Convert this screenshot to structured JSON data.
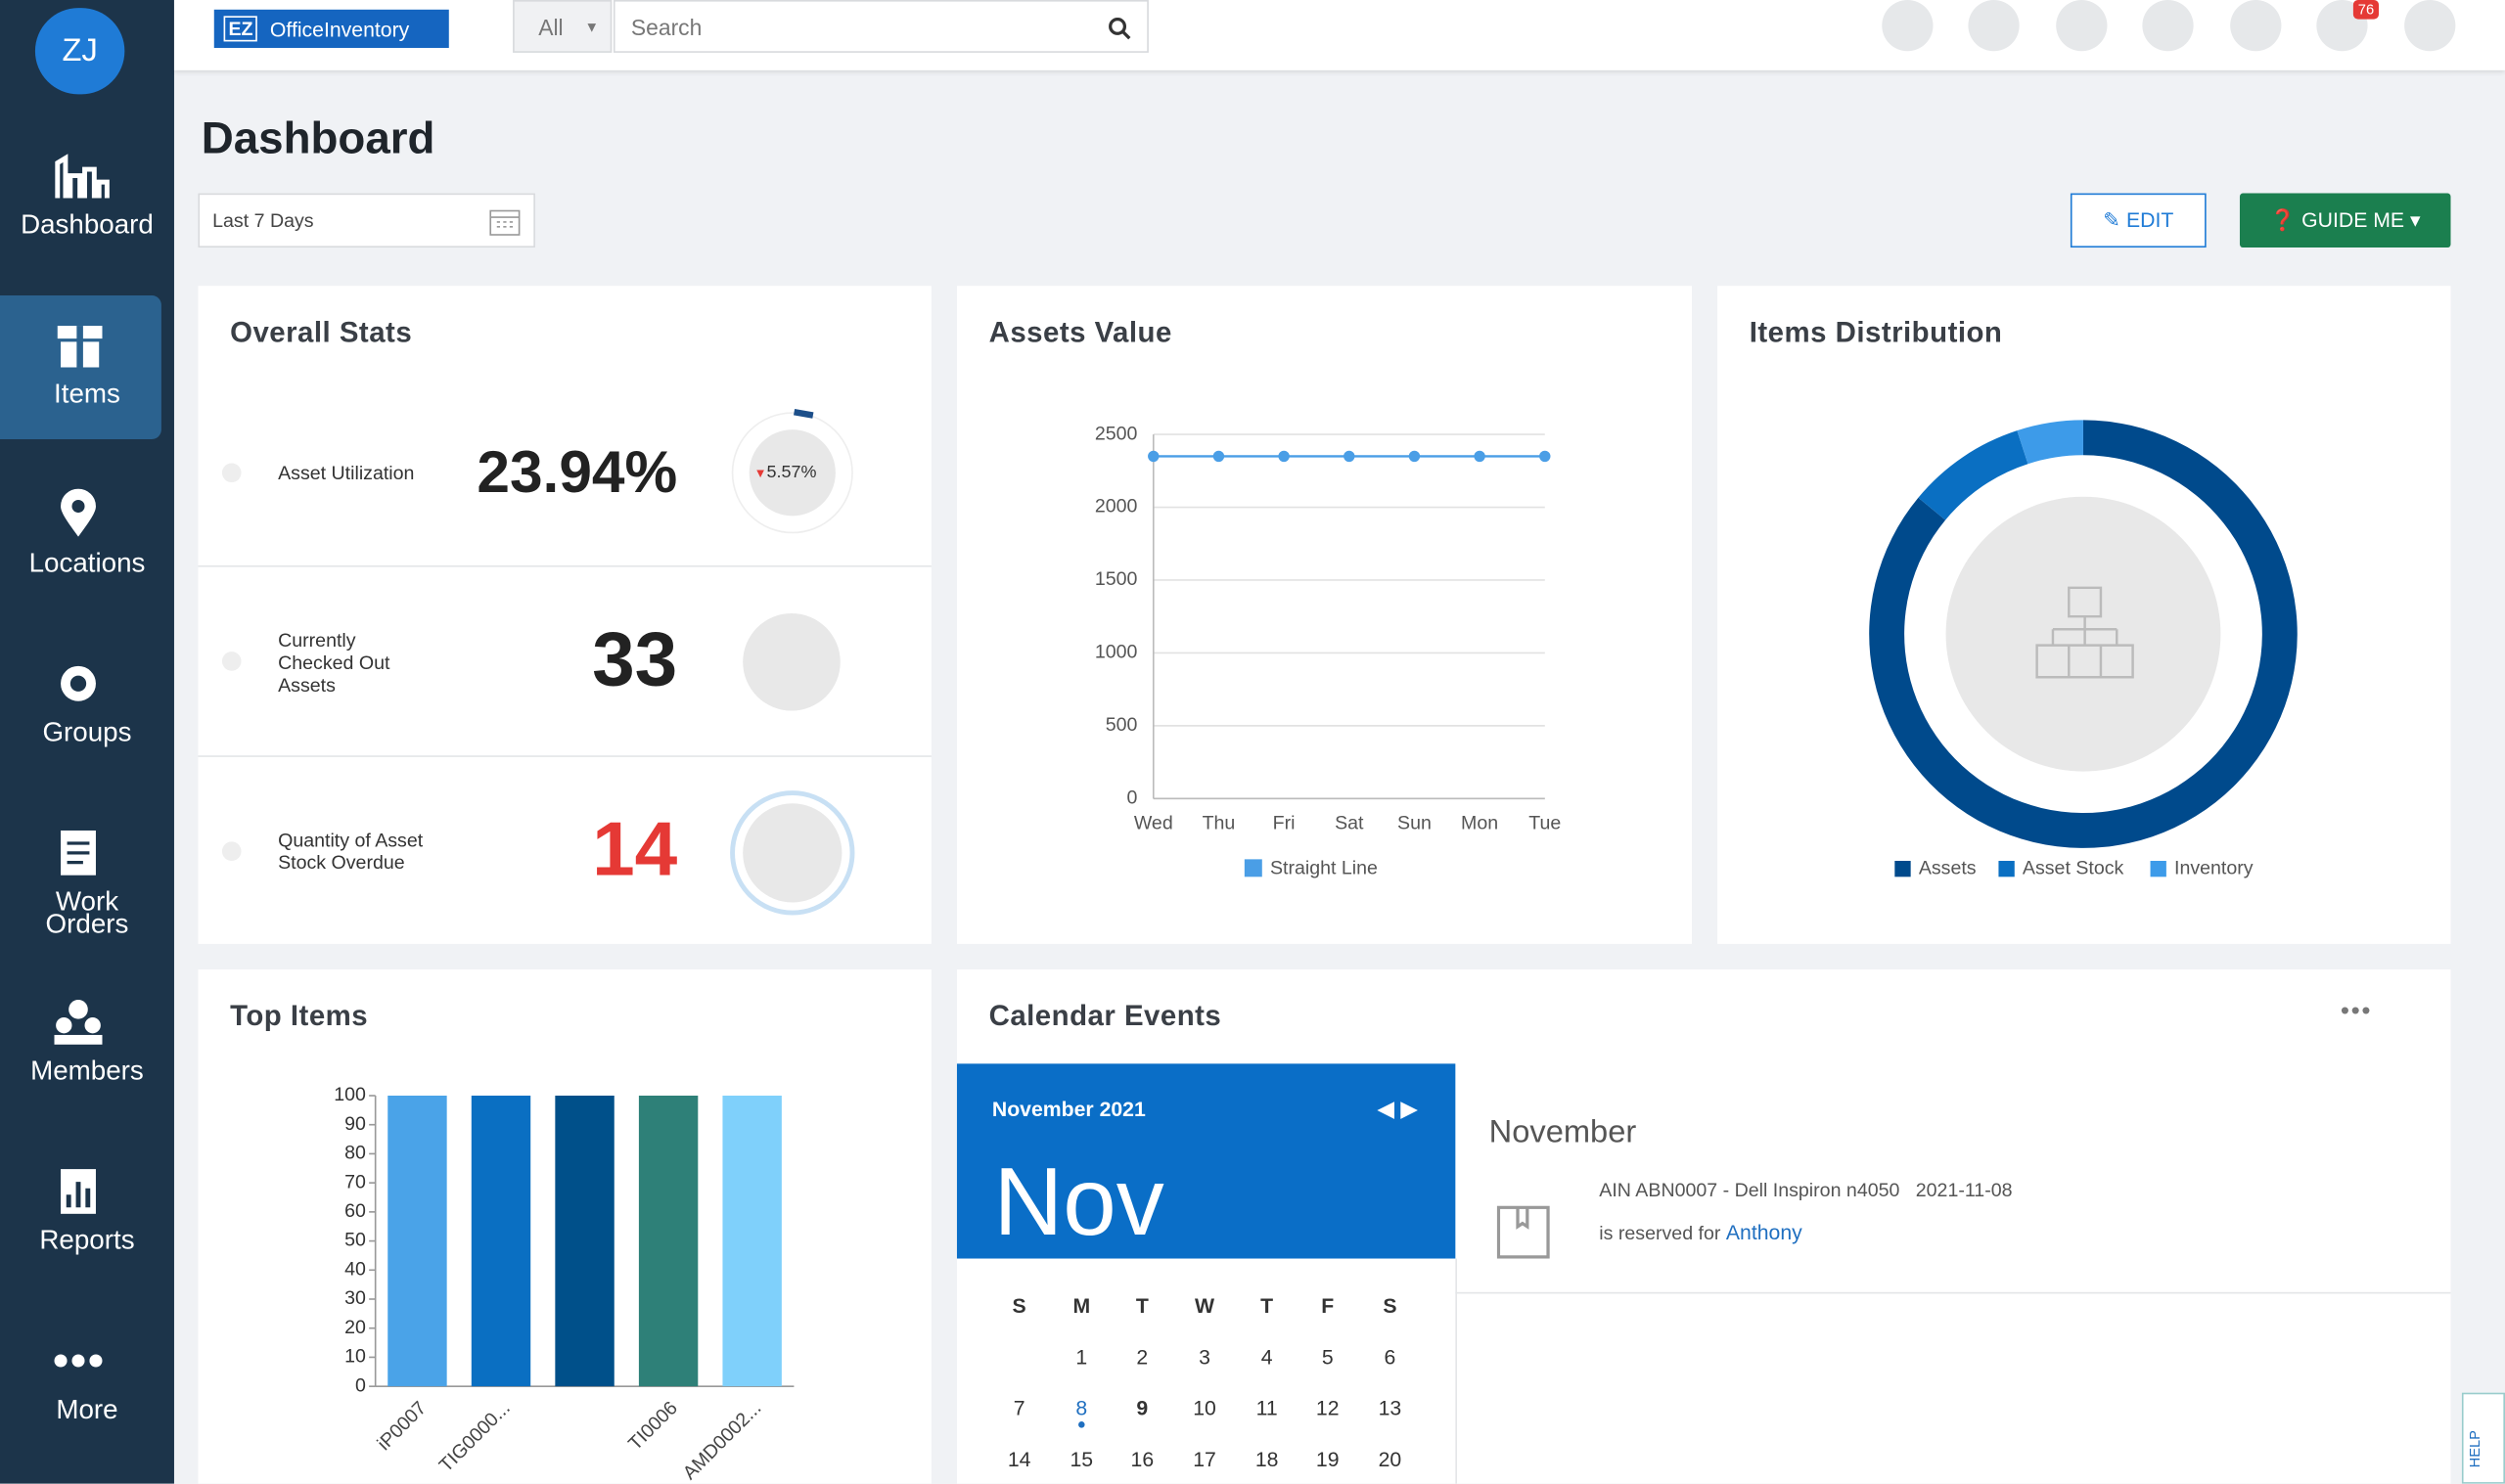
{
  "sidebar": {
    "avatar": "ZJ",
    "items": [
      "Dashboard",
      "Items",
      "Locations",
      "Groups",
      "Work Orders",
      "Members",
      "Reports",
      "More"
    ]
  },
  "topbar": {
    "logo_badge": "EZ",
    "logo_text": "OfficeInventory",
    "search_scope": "All",
    "search_placeholder": "Search",
    "notification_count": "76"
  },
  "header": {
    "title": "Dashboard",
    "date_range": "Last 7 Days",
    "edit": "EDIT",
    "guide": "GUIDE ME"
  },
  "overall_stats": {
    "title": "Overall Stats",
    "rows": [
      {
        "label": "Asset Utilization",
        "value": "23.94%",
        "change": "5.57%"
      },
      {
        "label": "Currently Checked Out Assets",
        "value": "33"
      },
      {
        "label": "Quantity of Asset Stock Overdue",
        "value": "14"
      }
    ]
  },
  "chart_data": [
    {
      "type": "line",
      "title": "Assets Value",
      "categories": [
        "Wed",
        "Thu",
        "Fri",
        "Sat",
        "Sun",
        "Mon",
        "Tue"
      ],
      "series": [
        {
          "name": "Straight Line",
          "color": "#4a9ee6",
          "values": [
            2350,
            2350,
            2350,
            2350,
            2350,
            2350,
            2350
          ]
        }
      ],
      "ylim": [
        0,
        2500
      ],
      "yticks": [
        0,
        500,
        1000,
        1500,
        2000,
        2500
      ],
      "grid": true
    },
    {
      "type": "pie",
      "title": "Items Distribution",
      "categories": [
        "Assets",
        "Asset Stock",
        "Inventory"
      ],
      "values": [
        86,
        9,
        5
      ],
      "colors": [
        "#004a8c",
        "#0a6fc2",
        "#3d9be9"
      ]
    },
    {
      "type": "bar",
      "title": "Top Items",
      "categories": [
        "iP0007",
        "TIG0000...",
        null,
        "TI0006",
        "AMD0002..."
      ],
      "values": [
        100,
        100,
        100,
        100,
        100
      ],
      "colors": [
        "#4aa3e8",
        "#0a6fc2",
        "#00508a",
        "#2e8078",
        "#7fd0fb"
      ],
      "ylim": [
        0,
        100
      ],
      "yticks": [
        0,
        10,
        20,
        30,
        40,
        50,
        60,
        70,
        80,
        90,
        100
      ]
    }
  ],
  "calendar": {
    "title": "Calendar Events",
    "month_label": "November 2021",
    "month_short": "Nov",
    "weekdays": [
      "S",
      "M",
      "T",
      "W",
      "T",
      "F",
      "S"
    ],
    "weeks": [
      [
        null,
        1,
        2,
        3,
        4,
        5,
        6
      ],
      [
        7,
        8,
        9,
        10,
        11,
        12,
        13
      ],
      [
        14,
        15,
        16,
        17,
        18,
        19,
        20
      ]
    ],
    "event_month": "November",
    "event_text": "AIN ABN0007 - Dell Inspiron n4050",
    "event_date": "2021-11-08",
    "reserved_text": "is reserved for",
    "person": "Anthony"
  },
  "help": "HELP"
}
